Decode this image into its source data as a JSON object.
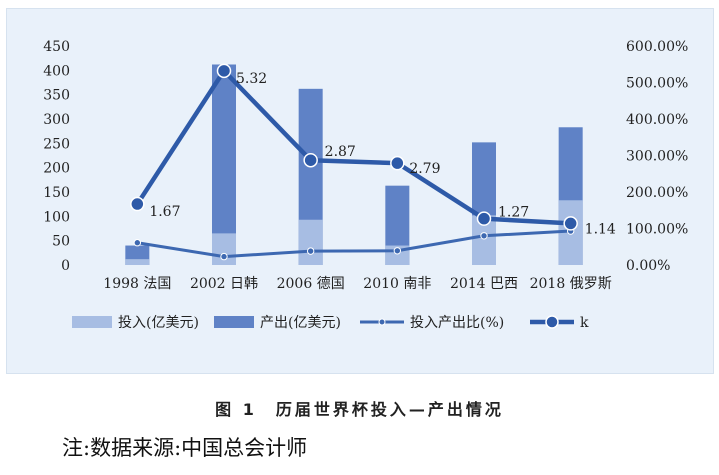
{
  "chart_data": {
    "type": "bar",
    "categories": [
      "1998 法国",
      "2002 日韩",
      "2006 德国",
      "2010 南非",
      "2014 巴西",
      "2018 俄罗斯"
    ],
    "series": [
      {
        "name": "投入(亿美元)",
        "type": "bar",
        "axis": "left",
        "values": [
          12,
          65,
          93,
          40,
          102,
          133
        ]
      },
      {
        "name": "产出(亿美元)",
        "type": "bar",
        "axis": "left",
        "values": [
          40,
          412,
          362,
          163,
          252,
          283
        ]
      },
      {
        "name": "投入产出比(%)",
        "type": "line",
        "axis": "right",
        "values": [
          61,
          23,
          38,
          39,
          80,
          93
        ]
      },
      {
        "name": "k",
        "type": "line",
        "axis": "right",
        "values": [
          167,
          532,
          287,
          279,
          127,
          114
        ],
        "labels": [
          "1.67",
          "5.32",
          "2.87",
          "2.79",
          "1.27",
          "1.14"
        ]
      }
    ],
    "y_left": {
      "min": 0,
      "max": 450,
      "ticks": [
        "0",
        "50",
        "100",
        "150",
        "200",
        "250",
        "300",
        "350",
        "400",
        "450"
      ]
    },
    "y_right": {
      "min": 0,
      "max": 600,
      "ticks": [
        "0.00%",
        "100.00%",
        "200.00%",
        "300.00%",
        "400.00%",
        "500.00%",
        "600.00%"
      ]
    },
    "grid": false,
    "legend": "bottom",
    "colors": {
      "input_bar": "#a7bde3",
      "output_bar": "#5f82c6",
      "ratio_line": "#3d68b1",
      "k_line": "#2e5aa8"
    }
  },
  "caption": "图 1　历届世界杯投入—产出情况",
  "note": "注:数据来源:中国总会计师"
}
